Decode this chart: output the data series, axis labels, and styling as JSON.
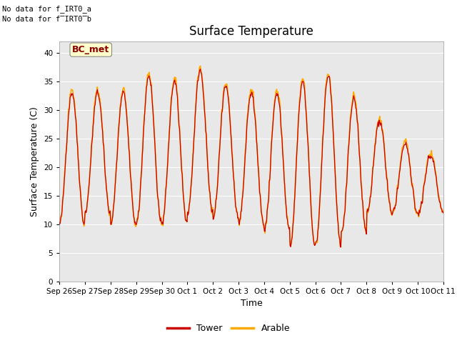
{
  "title": "Surface Temperature",
  "ylabel": "Surface Temperature (C)",
  "xlabel": "Time",
  "no_data_text_1": "No data for f_IRT0_a",
  "no_data_text_2": "No data for f̅IRT0̅b",
  "bc_met_label": "BC_met",
  "legend_entries": [
    "Tower",
    "Arable"
  ],
  "legend_colors": [
    "#cc0000",
    "#ffaa00"
  ],
  "ylim": [
    0,
    42
  ],
  "yticks": [
    0,
    5,
    10,
    15,
    20,
    25,
    30,
    35,
    40
  ],
  "xtick_labels": [
    "Sep 26",
    "Sep 27",
    "Sep 28",
    "Sep 29",
    "Sep 30",
    "Oct 1",
    "Oct 2",
    "Oct 3",
    "Oct 4",
    "Oct 5",
    "Oct 6",
    "Oct 7",
    "Oct 8",
    "Oct 9",
    "Oct 10",
    "Oct 11"
  ],
  "plot_bg_color": "#e8e8e8",
  "tower_color": "#cc0000",
  "arable_color": "#ffaa00",
  "num_days": 15,
  "num_points_per_day": 48,
  "daily_mins": [
    10,
    12,
    10,
    10,
    10,
    12,
    11,
    10,
    9,
    6,
    6.5,
    8.5,
    12,
    12,
    12
  ],
  "daily_maxs": [
    33,
    33,
    33,
    36,
    35,
    37,
    34,
    33,
    33,
    35,
    36,
    32,
    28,
    24,
    22
  ]
}
